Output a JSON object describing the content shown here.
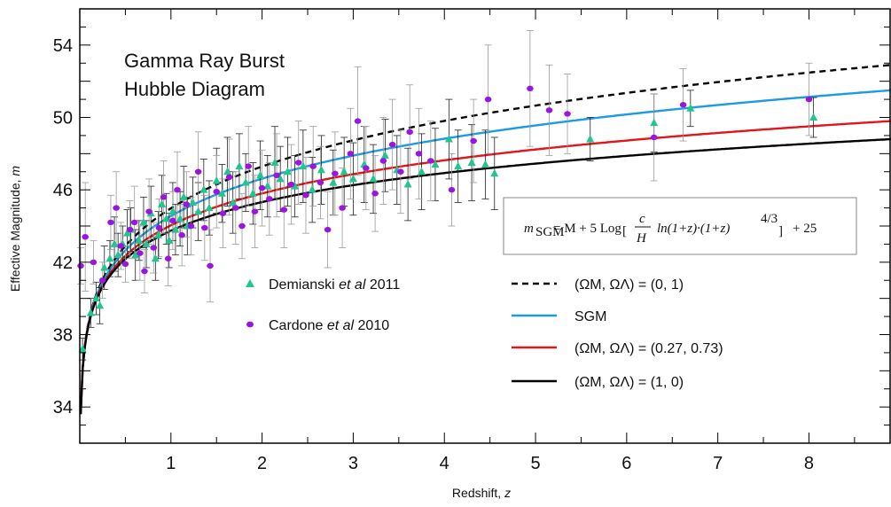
{
  "chart_data": {
    "type": "scatter",
    "title_lines": [
      "Gamma Ray Burst",
      "Hubble Diagram"
    ],
    "xlabel": "Redshift, z",
    "ylabel": "Effective Magnitude, m",
    "xlim": [
      0,
      8.9
    ],
    "ylim": [
      32,
      56
    ],
    "xticks": [
      1,
      2,
      3,
      4,
      5,
      6,
      7,
      8
    ],
    "yticks": [
      34,
      38,
      42,
      46,
      50,
      54
    ],
    "formula": "m_SGM = M + 5 Log[ c/H ln(1+z)·(1+z)^(4/3) ] + 25",
    "formula_parts": {
      "lhs": "m",
      "lhs_sub": "SGM",
      "eq": "= M + 5 Log",
      "c": "c",
      "h": "H",
      "body": "ln(1+z)·(1+z)",
      "exp": "4/3",
      "tail": "+ 25"
    },
    "model_legend": [
      {
        "key": "om0_ol1",
        "label": "(ΩM, ΩΛ) = (0, 1)",
        "color": "#000000",
        "dash": true
      },
      {
        "key": "sgm",
        "label": "SGM",
        "color": "#1b9be0",
        "dash": false
      },
      {
        "key": "om027_ol073",
        "label": "(ΩM, ΩΛ) = (0.27, 0.73)",
        "color": "#e0161b",
        "dash": false
      },
      {
        "key": "om1_ol0",
        "label": "(ΩM, ΩΛ) = (1, 0)",
        "color": "#000000",
        "dash": false
      }
    ],
    "data_legend": [
      {
        "label_pre": "Demianski ",
        "label_ital": "et al",
        "label_post": " 2011",
        "marker": "triangle",
        "color": "#20c58f"
      },
      {
        "label_pre": "Cardone ",
        "label_ital": "et al",
        "label_post": " 2010",
        "marker": "ellipse",
        "color": "#9a16e0"
      }
    ],
    "series": [
      {
        "name": "Demianski et al 2011",
        "color": "#20c58f",
        "points": [
          [
            0.03,
            37.2,
            0.6
          ],
          [
            0.12,
            39.2,
            0.8
          ],
          [
            0.18,
            40.0,
            0.9
          ],
          [
            0.22,
            39.6,
            1.0
          ],
          [
            0.27,
            41.7,
            1.2
          ],
          [
            0.33,
            42.2,
            1.0
          ],
          [
            0.38,
            43.0,
            1.5
          ],
          [
            0.42,
            42.4,
            1.2
          ],
          [
            0.47,
            43.0,
            1.0
          ],
          [
            0.52,
            43.6,
            1.3
          ],
          [
            0.56,
            43.8,
            1.2
          ],
          [
            0.61,
            42.4,
            1.4
          ],
          [
            0.65,
            43.2,
            1.1
          ],
          [
            0.7,
            44.2,
            1.4
          ],
          [
            0.73,
            43.0,
            1.3
          ],
          [
            0.78,
            44.7,
            1.5
          ],
          [
            0.83,
            42.2,
            1.2
          ],
          [
            0.86,
            43.5,
            1.3
          ],
          [
            0.9,
            45.2,
            1.6
          ],
          [
            0.95,
            44.4,
            1.4
          ],
          [
            0.98,
            43.2,
            1.5
          ],
          [
            1.02,
            44.8,
            1.6
          ],
          [
            1.05,
            43.8,
            1.4
          ],
          [
            1.1,
            44.4,
            1.5
          ],
          [
            1.14,
            45.6,
            1.7
          ],
          [
            1.18,
            44.0,
            1.6
          ],
          [
            1.24,
            45.3,
            1.4
          ],
          [
            1.3,
            44.8,
            1.6
          ],
          [
            1.36,
            46.0,
            1.7
          ],
          [
            1.42,
            45.0,
            1.5
          ],
          [
            1.5,
            46.5,
            1.8
          ],
          [
            1.56,
            45.8,
            1.6
          ],
          [
            1.62,
            47.0,
            1.9
          ],
          [
            1.68,
            45.3,
            1.7
          ],
          [
            1.75,
            47.3,
            1.8
          ],
          [
            1.82,
            46.4,
            1.6
          ],
          [
            1.9,
            45.8,
            1.7
          ],
          [
            1.98,
            46.8,
            1.9
          ],
          [
            2.06,
            46.2,
            1.7
          ],
          [
            2.14,
            47.5,
            2.0
          ],
          [
            2.2,
            46.6,
            1.8
          ],
          [
            2.28,
            47.0,
            1.9
          ],
          [
            2.36,
            46.2,
            1.7
          ],
          [
            2.45,
            47.3,
            2.0
          ],
          [
            2.55,
            46.0,
            1.8
          ],
          [
            2.65,
            47.1,
            1.9
          ],
          [
            2.78,
            46.4,
            1.8
          ],
          [
            2.9,
            47.0,
            1.9
          ],
          [
            3.0,
            46.6,
            2.0
          ],
          [
            3.12,
            47.4,
            2.1
          ],
          [
            3.22,
            46.6,
            1.9
          ],
          [
            3.35,
            47.9,
            2.0
          ],
          [
            3.48,
            47.1,
            1.9
          ],
          [
            3.6,
            46.3,
            2.0
          ],
          [
            3.75,
            47.0,
            2.1
          ],
          [
            3.9,
            47.4,
            2.0
          ],
          [
            4.05,
            48.8,
            2.2
          ],
          [
            4.15,
            47.3,
            2.0
          ],
          [
            4.3,
            47.5,
            2.1
          ],
          [
            4.45,
            47.4,
            1.9
          ],
          [
            4.55,
            46.9,
            2.0
          ],
          [
            5.6,
            48.8,
            1.2
          ],
          [
            6.3,
            49.7,
            1.6
          ],
          [
            6.7,
            50.5,
            1.0
          ],
          [
            8.05,
            50.0,
            1.1
          ]
        ]
      },
      {
        "name": "Cardone et al 2010",
        "color": "#9a16e0",
        "points": [
          [
            0.01,
            41.8,
            1.0
          ],
          [
            0.06,
            43.4,
            3.0
          ],
          [
            0.15,
            42.0,
            1.2
          ],
          [
            0.25,
            41.0,
            1.0
          ],
          [
            0.34,
            44.2,
            1.5
          ],
          [
            0.4,
            45.0,
            2.0
          ],
          [
            0.45,
            42.9,
            1.3
          ],
          [
            0.5,
            41.9,
            1.0
          ],
          [
            0.55,
            43.8,
            1.6
          ],
          [
            0.6,
            44.2,
            2.0
          ],
          [
            0.66,
            42.5,
            1.5
          ],
          [
            0.71,
            41.5,
            1.2
          ],
          [
            0.76,
            44.8,
            1.8
          ],
          [
            0.81,
            42.8,
            1.4
          ],
          [
            0.87,
            43.9,
            1.6
          ],
          [
            0.92,
            45.6,
            2.0
          ],
          [
            0.97,
            42.2,
            1.5
          ],
          [
            1.02,
            44.3,
            1.6
          ],
          [
            1.07,
            46.0,
            2.1
          ],
          [
            1.12,
            43.5,
            1.7
          ],
          [
            1.17,
            45.2,
            1.8
          ],
          [
            1.22,
            44.0,
            1.6
          ],
          [
            1.3,
            47.0,
            2.2
          ],
          [
            1.37,
            43.9,
            1.8
          ],
          [
            1.43,
            41.8,
            2.0
          ],
          [
            1.5,
            45.9,
            2.0
          ],
          [
            1.57,
            44.7,
            1.9
          ],
          [
            1.64,
            46.7,
            2.1
          ],
          [
            1.71,
            45.0,
            2.0
          ],
          [
            1.78,
            44.0,
            1.8
          ],
          [
            1.85,
            47.3,
            2.2
          ],
          [
            1.92,
            44.8,
            2.0
          ],
          [
            2.0,
            46.1,
            2.1
          ],
          [
            2.08,
            45.5,
            2.0
          ],
          [
            2.16,
            46.8,
            2.3
          ],
          [
            2.24,
            44.9,
            2.1
          ],
          [
            2.32,
            46.3,
            2.2
          ],
          [
            2.4,
            47.5,
            2.3
          ],
          [
            2.48,
            45.7,
            2.1
          ],
          [
            2.56,
            47.3,
            2.2
          ],
          [
            2.64,
            46.4,
            2.0
          ],
          [
            2.72,
            43.8,
            2.1
          ],
          [
            2.8,
            46.9,
            2.3
          ],
          [
            2.88,
            45.0,
            2.2
          ],
          [
            2.97,
            48.0,
            2.5
          ],
          [
            3.05,
            49.8,
            3.0
          ],
          [
            3.14,
            47.2,
            2.3
          ],
          [
            3.24,
            45.8,
            2.1
          ],
          [
            3.33,
            47.6,
            2.4
          ],
          [
            3.43,
            48.5,
            2.5
          ],
          [
            3.52,
            47.0,
            2.3
          ],
          [
            3.62,
            49.2,
            2.6
          ],
          [
            3.72,
            48.0,
            2.5
          ],
          [
            3.85,
            47.6,
            2.2
          ],
          [
            4.08,
            46.0,
            2.0
          ],
          [
            4.32,
            48.7,
            2.3
          ],
          [
            4.48,
            51.0,
            3.0
          ],
          [
            4.94,
            51.6,
            3.2
          ],
          [
            5.15,
            50.4,
            2.5
          ],
          [
            5.35,
            50.2,
            2.2
          ],
          [
            6.3,
            48.9,
            2.4
          ],
          [
            6.62,
            50.7,
            2.0
          ],
          [
            8.0,
            51.0,
            2.0
          ]
        ]
      }
    ]
  }
}
